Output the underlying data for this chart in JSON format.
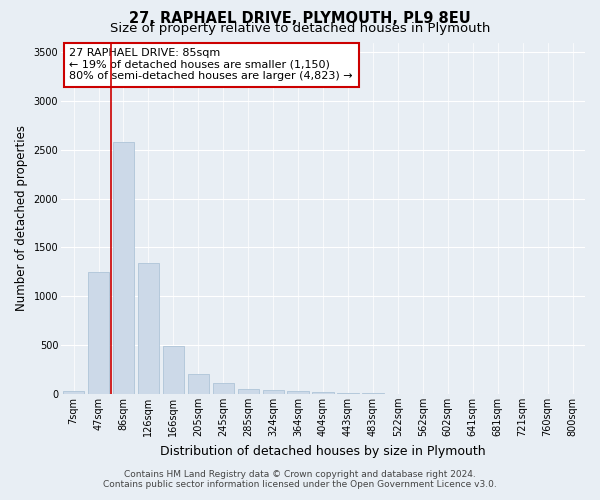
{
  "title": "27, RAPHAEL DRIVE, PLYMOUTH, PL9 8EU",
  "subtitle": "Size of property relative to detached houses in Plymouth",
  "xlabel": "Distribution of detached houses by size in Plymouth",
  "ylabel": "Number of detached properties",
  "footnote1": "Contains HM Land Registry data © Crown copyright and database right 2024.",
  "footnote2": "Contains public sector information licensed under the Open Government Licence v3.0.",
  "bar_labels": [
    "7sqm",
    "47sqm",
    "86sqm",
    "126sqm",
    "166sqm",
    "205sqm",
    "245sqm",
    "285sqm",
    "324sqm",
    "364sqm",
    "404sqm",
    "443sqm",
    "483sqm",
    "522sqm",
    "562sqm",
    "602sqm",
    "641sqm",
    "681sqm",
    "721sqm",
    "760sqm",
    "800sqm"
  ],
  "bar_values": [
    30,
    1250,
    2580,
    1340,
    490,
    200,
    110,
    50,
    40,
    30,
    20,
    10,
    5,
    3,
    2,
    1,
    1,
    0,
    0,
    0,
    0
  ],
  "bar_color": "#ccd9e8",
  "bar_edgecolor": "#aec4d8",
  "vline_x_index": 2,
  "vline_color": "#cc0000",
  "annotation_box_text": "27 RAPHAEL DRIVE: 85sqm\n← 19% of detached houses are smaller (1,150)\n80% of semi-detached houses are larger (4,823) →",
  "annotation_box_color": "#cc0000",
  "annotation_fill": "white",
  "ylim": [
    0,
    3600
  ],
  "yticks": [
    0,
    500,
    1000,
    1500,
    2000,
    2500,
    3000,
    3500
  ],
  "bg_color": "#e8eef4",
  "grid_color": "#ffffff",
  "title_fontsize": 10.5,
  "subtitle_fontsize": 9.5,
  "xlabel_fontsize": 9,
  "ylabel_fontsize": 8.5,
  "tick_fontsize": 7,
  "annotation_fontsize": 8,
  "footnote_fontsize": 6.5
}
